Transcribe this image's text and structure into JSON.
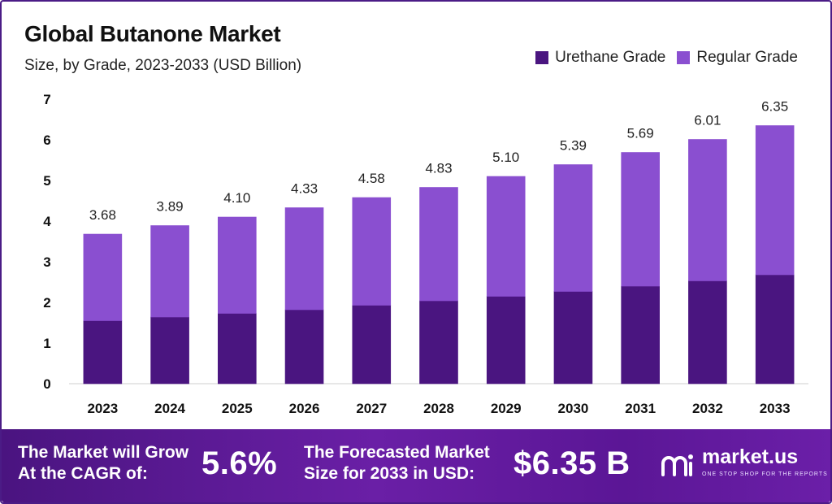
{
  "header": {
    "title": "Global Butanone Market",
    "subtitle": "Size, by Grade, 2023-2033 (USD Billion)"
  },
  "legend": [
    {
      "label": "Urethane Grade",
      "color": "#4a1580"
    },
    {
      "label": "Regular Grade",
      "color": "#8a4fd0"
    }
  ],
  "chart_data": {
    "type": "bar",
    "stacked": true,
    "title": "Global Butanone Market",
    "subtitle": "Size, by Grade, 2023-2033 (USD Billion)",
    "categories": [
      "2023",
      "2024",
      "2025",
      "2026",
      "2027",
      "2028",
      "2029",
      "2030",
      "2031",
      "2032",
      "2033"
    ],
    "series": [
      {
        "name": "Urethane Grade",
        "color": "#4a1580",
        "values": [
          1.55,
          1.64,
          1.73,
          1.82,
          1.93,
          2.04,
          2.15,
          2.27,
          2.4,
          2.53,
          2.68
        ]
      },
      {
        "name": "Regular Grade",
        "color": "#8a4fd0",
        "values": [
          2.13,
          2.25,
          2.37,
          2.51,
          2.65,
          2.79,
          2.95,
          3.12,
          3.29,
          3.48,
          3.67
        ]
      }
    ],
    "totals": [
      3.68,
      3.89,
      4.1,
      4.33,
      4.58,
      4.83,
      5.1,
      5.39,
      5.69,
      6.01,
      6.35
    ],
    "total_labels": [
      "3.68",
      "3.89",
      "4.10",
      "4.33",
      "4.58",
      "4.83",
      "5.10",
      "5.39",
      "5.69",
      "6.01",
      "6.35"
    ],
    "yticks": [
      0,
      1,
      2,
      3,
      4,
      5,
      6,
      7
    ],
    "ylim": [
      0,
      7
    ],
    "xlabel": "",
    "ylabel": "",
    "grid": false,
    "legend_position": "top-right"
  },
  "banner": {
    "cagr_label_line1": "The Market will Grow",
    "cagr_label_line2": "At the CAGR of:",
    "cagr_value": "5.6%",
    "forecast_label_line1": "The Forecasted Market",
    "forecast_label_line2": "Size for 2033 in USD:",
    "forecast_value": "$6.35 B",
    "brand_name": "market.us",
    "brand_tagline": "ONE STOP SHOP FOR THE REPORTS"
  }
}
